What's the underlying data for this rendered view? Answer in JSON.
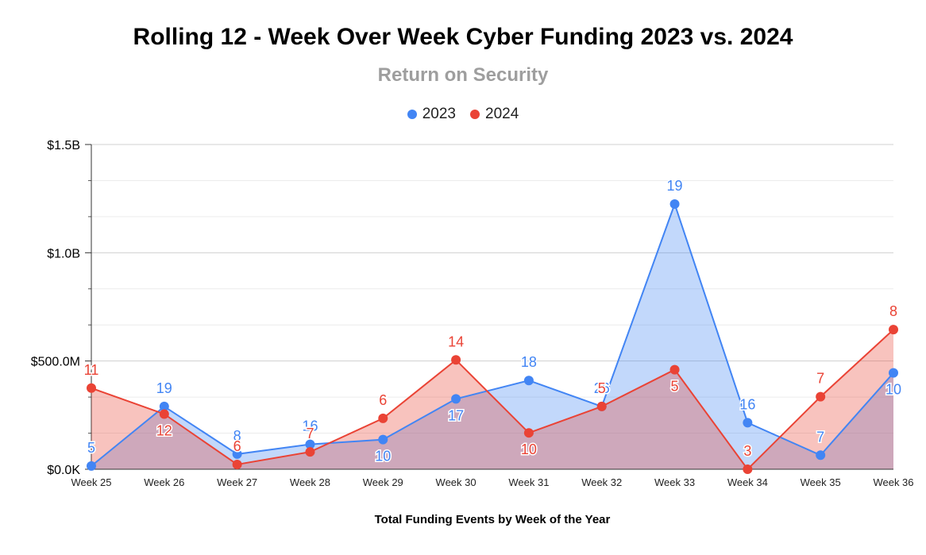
{
  "chart_data": {
    "type": "area",
    "title": "Rolling 12 - Week Over Week Cyber Funding 2023 vs. 2024",
    "subtitle": "Return on Security",
    "xlabel": "Total Funding Events by Week of the Year",
    "ylabel": "",
    "categories": [
      "Week 25",
      "Week 26",
      "Week 27",
      "Week 28",
      "Week 29",
      "Week 30",
      "Week 31",
      "Week 32",
      "Week 33",
      "Week 34",
      "Week 35",
      "Week 36"
    ],
    "ylim": [
      0,
      1500000000
    ],
    "yticks": [
      {
        "value": 0,
        "label": "$0.0K"
      },
      {
        "value": 500000000,
        "label": "$500.0M"
      },
      {
        "value": 1000000000,
        "label": "$1.0B"
      },
      {
        "value": 1500000000,
        "label": "$1.5B"
      }
    ],
    "grid": true,
    "legend_position": "top",
    "series": [
      {
        "name": "2023",
        "color": "#4285f4",
        "values": [
          15000000,
          290000000,
          70000000,
          115000000,
          137000000,
          325000000,
          410000000,
          290000000,
          1225000000,
          215000000,
          65000000,
          445000000
        ],
        "labels": [
          "5",
          "19",
          "8",
          "16",
          "10",
          "17",
          "18",
          "26",
          "19",
          "16",
          "7",
          "10"
        ]
      },
      {
        "name": "2024",
        "color": "#ea4335",
        "values": [
          375000000,
          255000000,
          22000000,
          80000000,
          235000000,
          505000000,
          168000000,
          290000000,
          460000000,
          0,
          335000000,
          645000000
        ],
        "labels": [
          "11",
          "12",
          "6",
          "7",
          "6",
          "14",
          "10",
          "5",
          "5",
          "3",
          "7",
          "8"
        ]
      }
    ]
  }
}
